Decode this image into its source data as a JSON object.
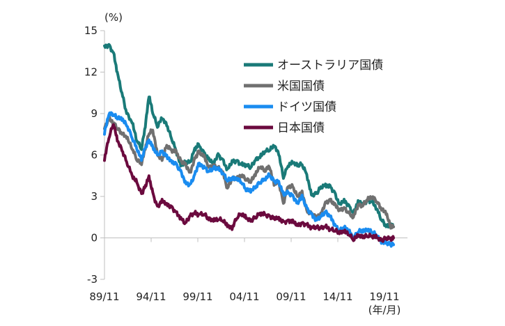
{
  "chart_data": {
    "type": "line",
    "y_unit": "(%)",
    "x_unit": "(年/月)",
    "ylim": [
      -3,
      15
    ],
    "y_ticks": [
      "15",
      "12",
      "9",
      "6",
      "3",
      "0",
      "-3"
    ],
    "y_tick_values": [
      15,
      12,
      9,
      6,
      3,
      0,
      -3
    ],
    "x_ticks": [
      "89/11",
      "94/11",
      "99/11",
      "04/11",
      "09/11",
      "14/11",
      "19/11"
    ],
    "x_tick_values": [
      1989.83,
      1994.83,
      1999.83,
      2004.83,
      2009.83,
      2014.83,
      2019.83
    ],
    "xlim": [
      1989.83,
      2020.8
    ],
    "grid": false,
    "legend_position": "top-right",
    "series": [
      {
        "name": "オーストラリア国債",
        "color": "#1a7a78",
        "x": [
          1989.83,
          1990.3,
          1990.8,
          1991.2,
          1991.7,
          1992.2,
          1992.8,
          1993.3,
          1993.8,
          1994.2,
          1994.6,
          1995.0,
          1995.5,
          1996.0,
          1996.5,
          1997.0,
          1997.5,
          1998.0,
          1998.5,
          1999.0,
          1999.5,
          1999.9,
          2000.5,
          2001.0,
          2001.5,
          2002.0,
          2002.5,
          2003.0,
          2003.5,
          2004.0,
          2004.5,
          2005.0,
          2005.5,
          2006.0,
          2006.5,
          2007.0,
          2007.5,
          2008.0,
          2008.5,
          2009.0,
          2009.5,
          2010.0,
          2010.5,
          2011.0,
          2011.5,
          2012.0,
          2012.5,
          2013.0,
          2013.5,
          2014.0,
          2014.5,
          2015.0,
          2015.5,
          2016.0,
          2016.5,
          2017.0,
          2017.5,
          2018.0,
          2018.5,
          2019.0,
          2019.5,
          2020.0,
          2020.5,
          2020.8
        ],
        "values": [
          13.9,
          14.0,
          13.4,
          12.0,
          10.5,
          9.0,
          8.3,
          7.0,
          6.4,
          8.0,
          10.2,
          9.0,
          8.0,
          8.6,
          8.1,
          7.2,
          6.3,
          5.2,
          5.5,
          5.5,
          6.5,
          6.8,
          6.2,
          5.8,
          5.5,
          6.1,
          5.7,
          5.0,
          5.6,
          5.6,
          5.3,
          5.3,
          5.1,
          5.6,
          5.8,
          6.2,
          6.3,
          6.6,
          6.0,
          4.3,
          5.2,
          5.4,
          5.2,
          5.3,
          4.6,
          3.1,
          3.2,
          3.7,
          3.9,
          3.8,
          3.3,
          2.5,
          2.8,
          2.4,
          1.8,
          2.7,
          2.5,
          2.7,
          2.6,
          2.1,
          1.3,
          0.8,
          0.8,
          0.8
        ]
      },
      {
        "name": "米国国債",
        "color": "#707070",
        "x": [
          1989.83,
          1990.3,
          1990.8,
          1991.2,
          1991.7,
          1992.2,
          1992.8,
          1993.3,
          1993.8,
          1994.2,
          1994.6,
          1995.0,
          1995.5,
          1996.0,
          1996.5,
          1997.0,
          1997.5,
          1998.0,
          1998.5,
          1999.0,
          1999.5,
          1999.9,
          2000.5,
          2001.0,
          2001.5,
          2002.0,
          2002.5,
          2003.0,
          2003.5,
          2004.0,
          2004.5,
          2005.0,
          2005.5,
          2006.0,
          2006.5,
          2007.0,
          2007.5,
          2008.0,
          2008.5,
          2009.0,
          2009.5,
          2010.0,
          2010.5,
          2011.0,
          2011.5,
          2012.0,
          2012.5,
          2013.0,
          2013.5,
          2014.0,
          2014.5,
          2015.0,
          2015.5,
          2016.0,
          2016.5,
          2017.0,
          2017.5,
          2018.0,
          2018.5,
          2019.0,
          2019.5,
          2020.0,
          2020.5,
          2020.8
        ],
        "values": [
          7.9,
          8.6,
          8.3,
          7.9,
          7.5,
          7.2,
          6.4,
          5.6,
          5.3,
          6.4,
          7.5,
          7.8,
          6.0,
          5.6,
          6.7,
          6.4,
          6.3,
          5.6,
          5.4,
          4.8,
          5.8,
          6.3,
          6.0,
          5.2,
          5.3,
          5.1,
          4.8,
          3.6,
          4.3,
          4.2,
          4.5,
          4.2,
          4.0,
          4.5,
          5.1,
          4.8,
          5.1,
          3.8,
          4.0,
          2.5,
          3.7,
          3.7,
          3.0,
          3.4,
          2.0,
          1.8,
          1.6,
          1.8,
          2.6,
          2.8,
          2.5,
          2.1,
          2.2,
          1.8,
          1.5,
          2.4,
          2.3,
          2.7,
          2.9,
          2.6,
          2.0,
          1.7,
          0.7,
          0.8
        ]
      },
      {
        "name": "ドイツ国債",
        "color": "#1a8cf0",
        "x": [
          1989.83,
          1990.3,
          1990.8,
          1991.2,
          1991.7,
          1992.2,
          1992.8,
          1993.3,
          1993.8,
          1994.2,
          1994.6,
          1995.0,
          1995.5,
          1996.0,
          1996.5,
          1997.0,
          1997.5,
          1998.0,
          1998.5,
          1999.0,
          1999.5,
          1999.9,
          2000.5,
          2001.0,
          2001.5,
          2002.0,
          2002.5,
          2003.0,
          2003.5,
          2004.0,
          2004.5,
          2005.0,
          2005.5,
          2006.0,
          2006.5,
          2007.0,
          2007.5,
          2008.0,
          2008.5,
          2009.0,
          2009.5,
          2010.0,
          2010.5,
          2011.0,
          2011.5,
          2012.0,
          2012.5,
          2013.0,
          2013.5,
          2014.0,
          2014.5,
          2015.0,
          2015.5,
          2016.0,
          2016.5,
          2017.0,
          2017.5,
          2018.0,
          2018.5,
          2019.0,
          2019.5,
          2020.0,
          2020.5,
          2020.8
        ],
        "values": [
          7.5,
          8.9,
          8.9,
          8.6,
          8.5,
          8.1,
          7.2,
          6.4,
          5.6,
          6.5,
          7.1,
          6.6,
          6.0,
          6.3,
          6.0,
          5.6,
          5.4,
          4.9,
          4.1,
          3.9,
          4.6,
          5.4,
          5.2,
          4.8,
          5.0,
          5.0,
          4.7,
          4.1,
          4.2,
          4.2,
          4.0,
          3.4,
          3.3,
          3.6,
          4.0,
          4.2,
          4.5,
          4.1,
          4.1,
          3.2,
          3.3,
          3.1,
          2.6,
          3.1,
          2.2,
          1.8,
          1.4,
          1.6,
          1.9,
          1.6,
          1.0,
          0.5,
          0.7,
          0.5,
          -0.1,
          0.4,
          0.4,
          0.5,
          0.4,
          0.1,
          -0.4,
          -0.4,
          -0.5,
          -0.5
        ]
      },
      {
        "name": "日本国債",
        "color": "#6b0a3e",
        "x": [
          1989.83,
          1990.3,
          1990.8,
          1991.2,
          1991.7,
          1992.2,
          1992.8,
          1993.3,
          1993.8,
          1994.2,
          1994.6,
          1995.0,
          1995.5,
          1996.0,
          1996.5,
          1997.0,
          1997.5,
          1998.0,
          1998.5,
          1999.0,
          1999.5,
          1999.9,
          2000.5,
          2001.0,
          2001.5,
          2002.0,
          2002.5,
          2003.0,
          2003.5,
          2004.0,
          2004.5,
          2005.0,
          2005.5,
          2006.0,
          2006.5,
          2007.0,
          2007.5,
          2008.0,
          2008.5,
          2009.0,
          2009.5,
          2010.0,
          2010.5,
          2011.0,
          2011.5,
          2012.0,
          2012.5,
          2013.0,
          2013.5,
          2014.0,
          2014.5,
          2015.0,
          2015.5,
          2016.0,
          2016.5,
          2017.0,
          2017.5,
          2018.0,
          2018.5,
          2019.0,
          2019.5,
          2020.0,
          2020.5,
          2020.8
        ],
        "values": [
          5.6,
          7.2,
          8.2,
          7.0,
          6.3,
          5.5,
          4.5,
          4.0,
          3.2,
          3.8,
          4.5,
          3.3,
          2.3,
          2.8,
          2.5,
          2.3,
          1.9,
          1.5,
          1.1,
          1.6,
          1.8,
          1.7,
          1.7,
          1.3,
          1.2,
          1.3,
          1.2,
          0.8,
          0.6,
          1.4,
          1.7,
          1.4,
          1.2,
          1.5,
          1.8,
          1.7,
          1.6,
          1.5,
          1.5,
          1.2,
          1.3,
          1.3,
          1.0,
          1.1,
          1.0,
          0.8,
          0.8,
          0.7,
          0.8,
          0.6,
          0.5,
          0.3,
          0.4,
          0.2,
          -0.2,
          0.1,
          0.0,
          0.1,
          0.1,
          0.0,
          -0.2,
          0.0,
          0.0,
          0.0
        ]
      }
    ]
  }
}
